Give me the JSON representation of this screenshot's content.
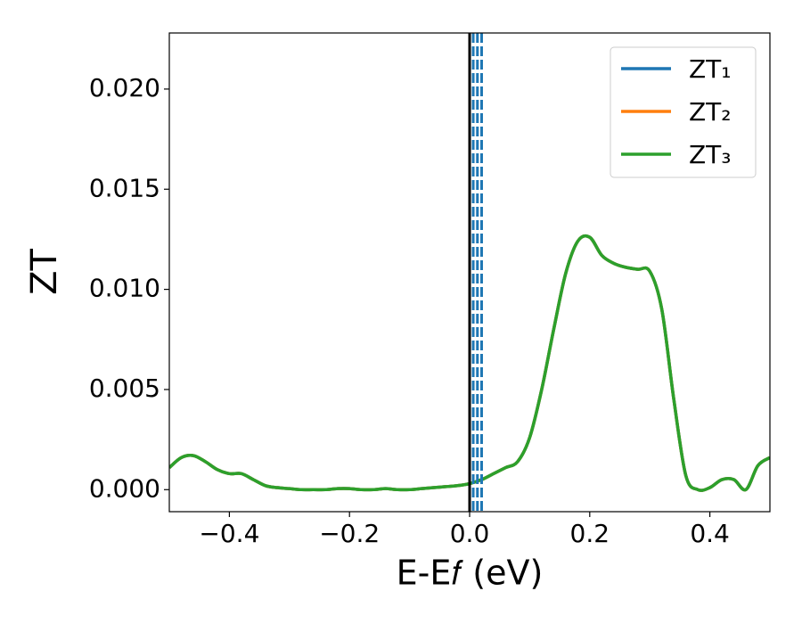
{
  "chart_data": {
    "type": "line",
    "x_label": "E-E𝑓 (eV)",
    "y_label": "ZT",
    "x": [
      -0.5,
      -0.48,
      -0.46,
      -0.44,
      -0.42,
      -0.4,
      -0.38,
      -0.36,
      -0.34,
      -0.32,
      -0.3,
      -0.28,
      -0.26,
      -0.24,
      -0.22,
      -0.2,
      -0.18,
      -0.16,
      -0.14,
      -0.12,
      -0.1,
      -0.08,
      -0.06,
      -0.04,
      -0.02,
      0.0,
      0.02,
      0.04,
      0.06,
      0.08,
      0.1,
      0.12,
      0.14,
      0.16,
      0.18,
      0.2,
      0.22,
      0.24,
      0.26,
      0.28,
      0.3,
      0.32,
      0.34,
      0.36,
      0.38,
      0.4,
      0.42,
      0.44,
      0.46,
      0.48,
      0.5
    ],
    "series": [
      {
        "name": "ZT₁",
        "color": "#1f77b4",
        "values": [
          0.0011,
          0.0016,
          0.0017,
          0.0014,
          0.001,
          0.0008,
          0.0008,
          0.0005,
          0.0002,
          0.0001,
          5e-05,
          0,
          0,
          0,
          5e-05,
          5e-05,
          0,
          0,
          5e-05,
          0,
          0,
          5e-05,
          0.0001,
          0.00015,
          0.0002,
          0.0003,
          0.0005,
          0.0008,
          0.0011,
          0.0014,
          0.0026,
          0.005,
          0.008,
          0.0108,
          0.0124,
          0.0126,
          0.0117,
          0.0113,
          0.0111,
          0.011,
          0.0109,
          0.009,
          0.0045,
          0.0007,
          0,
          0.0001,
          0.0005,
          0.0005,
          0,
          0.0012,
          0.0016
        ]
      },
      {
        "name": "ZT₂",
        "color": "#ff7f0e",
        "values": [
          0.0011,
          0.0016,
          0.0017,
          0.0014,
          0.001,
          0.0008,
          0.0008,
          0.0005,
          0.0002,
          0.0001,
          5e-05,
          0,
          0,
          0,
          5e-05,
          5e-05,
          0,
          0,
          5e-05,
          0,
          0,
          5e-05,
          0.0001,
          0.00015,
          0.0002,
          0.0003,
          0.0005,
          0.0008,
          0.0011,
          0.0014,
          0.0026,
          0.005,
          0.008,
          0.0108,
          0.0124,
          0.0126,
          0.0117,
          0.0113,
          0.0111,
          0.011,
          0.0109,
          0.009,
          0.0045,
          0.0007,
          0,
          0.0001,
          0.0005,
          0.0005,
          0,
          0.0012,
          0.0016
        ]
      },
      {
        "name": "ZT₃",
        "color": "#2ca02c",
        "values": [
          0.0011,
          0.0016,
          0.0017,
          0.0014,
          0.001,
          0.0008,
          0.0008,
          0.0005,
          0.0002,
          0.0001,
          5e-05,
          0,
          0,
          0,
          5e-05,
          5e-05,
          0,
          0,
          5e-05,
          0,
          0,
          5e-05,
          0.0001,
          0.00015,
          0.0002,
          0.0003,
          0.0005,
          0.0008,
          0.0011,
          0.0014,
          0.0026,
          0.005,
          0.008,
          0.0108,
          0.0124,
          0.0126,
          0.0117,
          0.0113,
          0.0111,
          0.011,
          0.0109,
          0.009,
          0.0045,
          0.0007,
          0,
          0.0001,
          0.0005,
          0.0005,
          0,
          0.0012,
          0.0016
        ]
      }
    ],
    "vlines": [
      {
        "x": 0.0,
        "color": "#000000",
        "style": "solid"
      },
      {
        "x": 0.006,
        "color": "#1f77b4",
        "style": "dashed"
      },
      {
        "x": 0.013,
        "color": "#1f77b4",
        "style": "dashed"
      },
      {
        "x": 0.02,
        "color": "#1f77b4",
        "style": "dashed"
      }
    ],
    "xlim": [
      -0.5,
      0.5
    ],
    "xticks": [
      {
        "value": -0.4,
        "label": "−0.4"
      },
      {
        "value": -0.2,
        "label": "−0.2"
      },
      {
        "value": 0.0,
        "label": "0.0"
      },
      {
        "value": 0.2,
        "label": "0.2"
      },
      {
        "value": 0.4,
        "label": "0.4"
      }
    ],
    "ylim": [
      -0.0011,
      0.0228
    ],
    "yticks": [
      {
        "value": 0,
        "label": "0.000"
      },
      {
        "value": 0.005,
        "label": "0.005"
      },
      {
        "value": 0.01,
        "label": "0.010"
      },
      {
        "value": 0.015,
        "label": "0.015"
      },
      {
        "value": 0.02,
        "label": "0.020"
      }
    ],
    "grid": false,
    "legend": "upper right"
  }
}
